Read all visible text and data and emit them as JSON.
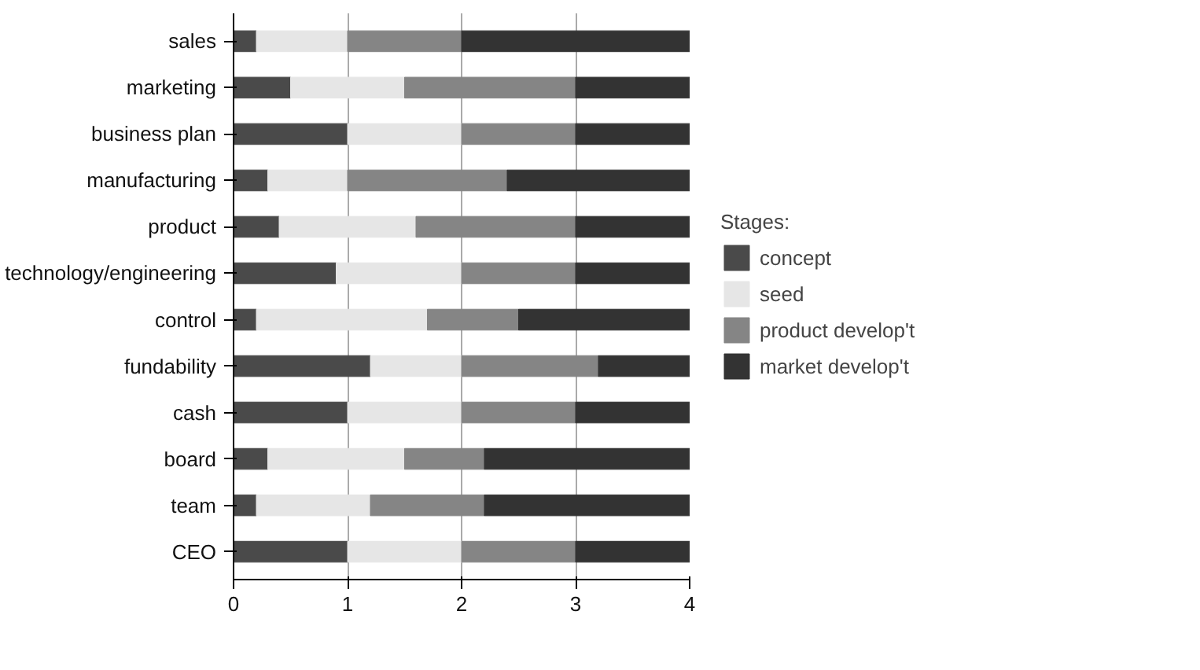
{
  "chart_data": {
    "type": "bar",
    "orientation": "horizontal",
    "stacked": true,
    "categories": [
      "sales",
      "marketing",
      "business plan",
      "manufacturing",
      "product",
      "technology/engineering",
      "control",
      "fundability",
      "cash",
      "board",
      "team",
      "CEO"
    ],
    "series": [
      {
        "name": "concept",
        "color": "#4a4a4a",
        "values": [
          0.2,
          0.5,
          1.0,
          0.3,
          0.4,
          0.9,
          0.2,
          1.2,
          1.0,
          0.3,
          0.2,
          1.0
        ]
      },
      {
        "name": "seed",
        "color": "#e6e6e6",
        "values": [
          0.8,
          1.0,
          1.0,
          0.7,
          1.2,
          1.1,
          1.5,
          0.8,
          1.0,
          1.2,
          1.0,
          1.0
        ]
      },
      {
        "name": "product develop't",
        "color": "#858585",
        "values": [
          1.0,
          1.5,
          1.0,
          1.4,
          1.4,
          1.0,
          0.8,
          1.2,
          1.0,
          0.7,
          1.0,
          1.0
        ]
      },
      {
        "name": "market develop't",
        "color": "#333333",
        "values": [
          2.0,
          1.0,
          1.0,
          1.6,
          1.0,
          1.0,
          1.5,
          0.8,
          1.0,
          1.8,
          1.8,
          1.0
        ]
      }
    ],
    "legend_title": "Stages:",
    "legend": "right",
    "xlim": [
      0,
      4
    ],
    "xticks": [
      0,
      1,
      2,
      3,
      4
    ],
    "grid": "x"
  }
}
